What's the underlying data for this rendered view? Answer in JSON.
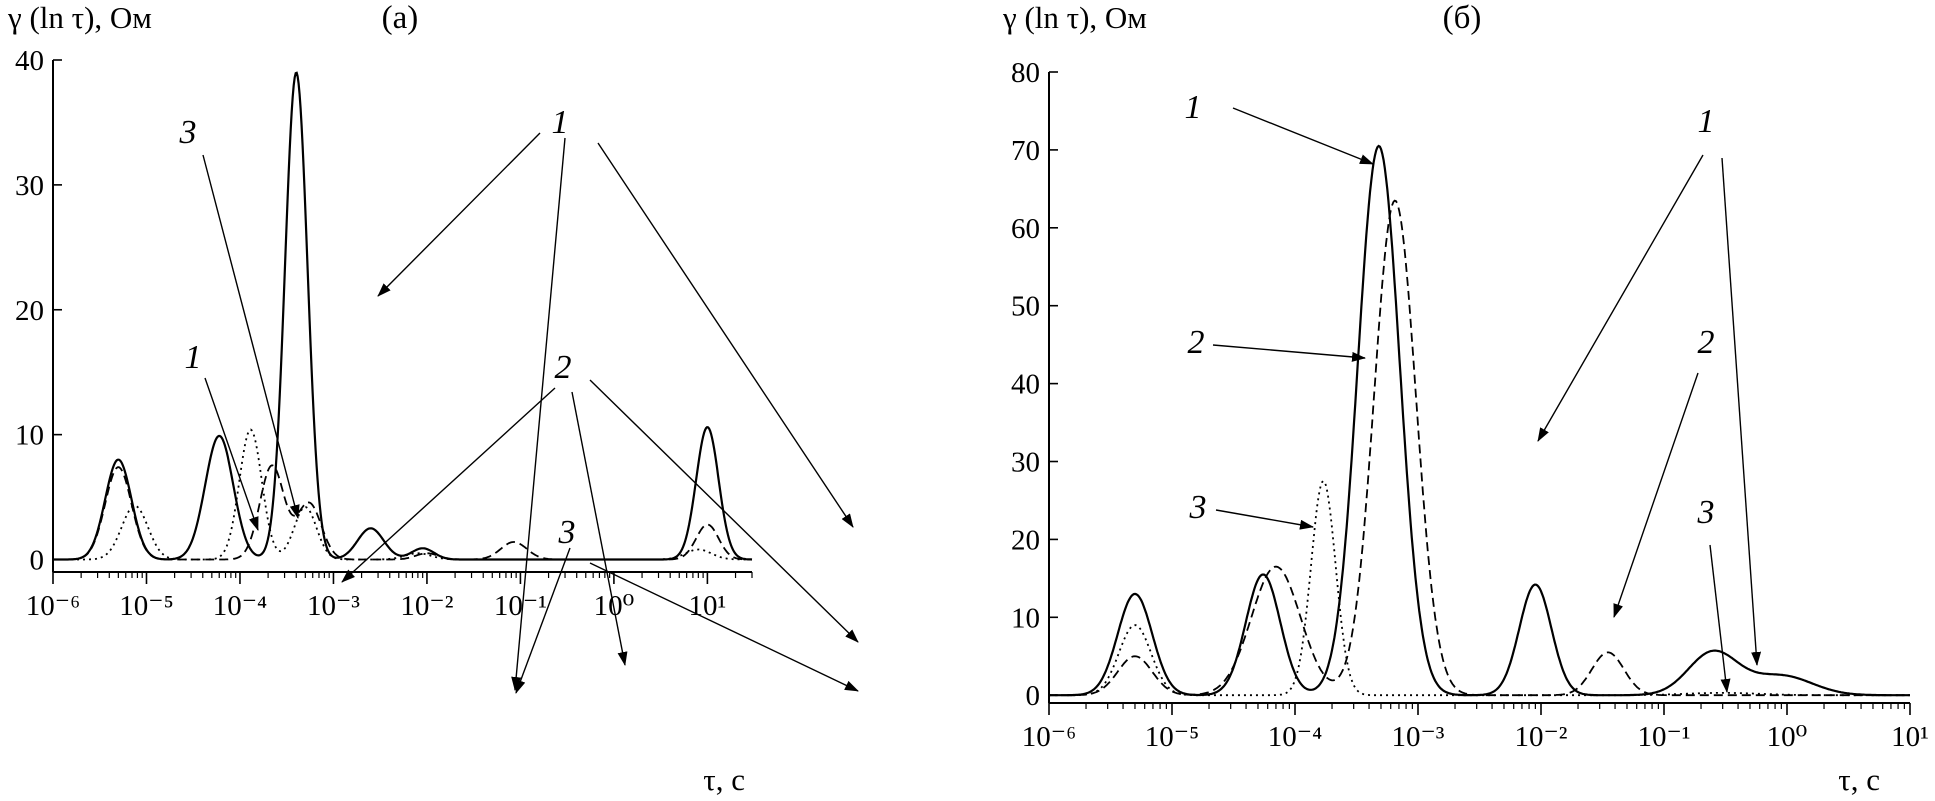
{
  "chart_data": [
    {
      "type": "line",
      "panel_label": "(a)",
      "ylabel": "γ (ln τ), Ом",
      "xlabel": "τ, c",
      "x_scale": "log",
      "xlim": [
        1e-06,
        30
      ],
      "ylim": [
        -1,
        40
      ],
      "x_tick_labels": [
        "10⁻⁶",
        "10⁻⁵",
        "10⁻⁴",
        "10⁻³",
        "10⁻²",
        "10⁻¹",
        "10⁰",
        "10¹"
      ],
      "y_ticks": [
        0,
        10,
        20,
        30,
        40
      ],
      "grid": false,
      "series": [
        {
          "name": "1",
          "line_style": "solid",
          "peaks": [
            {
              "tau": 5e-06,
              "height": 8.0,
              "width_decades": 0.14
            },
            {
              "tau": 6e-05,
              "height": 9.9,
              "width_decades": 0.15
            },
            {
              "tau": 0.0004,
              "height": 39.0,
              "width_decades": 0.12
            },
            {
              "tau": 0.0025,
              "height": 2.5,
              "width_decades": 0.14
            },
            {
              "tau": 0.009,
              "height": 0.9,
              "width_decades": 0.12
            },
            {
              "tau": 10,
              "height": 10.6,
              "width_decades": 0.12
            }
          ]
        },
        {
          "name": "2",
          "line_style": "dashed",
          "peaks": [
            {
              "tau": 5e-06,
              "height": 7.4,
              "width_decades": 0.14
            },
            {
              "tau": 0.00022,
              "height": 7.5,
              "width_decades": 0.13
            },
            {
              "tau": 0.00055,
              "height": 4.5,
              "width_decades": 0.13
            },
            {
              "tau": 0.01,
              "height": 0.5,
              "width_decades": 0.12
            },
            {
              "tau": 0.085,
              "height": 1.4,
              "width_decades": 0.14
            },
            {
              "tau": 10,
              "height": 2.8,
              "width_decades": 0.12
            }
          ]
        },
        {
          "name": "3",
          "line_style": "dotted",
          "peaks": [
            {
              "tau": 7.5e-06,
              "height": 4.3,
              "width_decades": 0.14
            },
            {
              "tau": 0.00013,
              "height": 10.4,
              "width_decades": 0.12
            },
            {
              "tau": 0.0005,
              "height": 4.2,
              "width_decades": 0.12
            },
            {
              "tau": 0.008,
              "height": 0.5,
              "width_decades": 0.14
            },
            {
              "tau": 8,
              "height": 0.8,
              "width_decades": 0.14
            }
          ]
        }
      ],
      "annotations": [
        {
          "text": "3"
        },
        {
          "text": "1"
        },
        {
          "text": "1"
        },
        {
          "text": "2"
        },
        {
          "text": "3"
        }
      ]
    },
    {
      "type": "line",
      "panel_label": "(б)",
      "ylabel": "γ (ln τ), Ом",
      "xlabel": "τ, c",
      "x_scale": "log",
      "xlim": [
        1e-06,
        10
      ],
      "ylim": [
        -1,
        80
      ],
      "x_tick_labels": [
        "10⁻⁶",
        "10⁻⁵",
        "10⁻⁴",
        "10⁻³",
        "10⁻²",
        "10⁻¹",
        "10⁰",
        "10¹"
      ],
      "y_ticks": [
        0,
        10,
        20,
        30,
        40,
        50,
        60,
        70,
        80
      ],
      "grid": false,
      "series": [
        {
          "name": "1",
          "line_style": "solid",
          "peaks": [
            {
              "tau": 5e-06,
              "height": 13.0,
              "width_decades": 0.14
            },
            {
              "tau": 5.5e-05,
              "height": 15.5,
              "width_decades": 0.14
            },
            {
              "tau": 0.00048,
              "height": 70.5,
              "width_decades": 0.17
            },
            {
              "tau": 0.009,
              "height": 14.2,
              "width_decades": 0.13
            },
            {
              "tau": 0.25,
              "height": 5.5,
              "width_decades": 0.2
            },
            {
              "tau": 0.9,
              "height": 2.5,
              "width_decades": 0.25
            }
          ]
        },
        {
          "name": "2",
          "line_style": "dashed",
          "peaks": [
            {
              "tau": 5e-06,
              "height": 5.0,
              "width_decades": 0.14
            },
            {
              "tau": 7e-05,
              "height": 16.5,
              "width_decades": 0.2
            },
            {
              "tau": 0.00065,
              "height": 63.5,
              "width_decades": 0.17
            },
            {
              "tau": 0.035,
              "height": 5.5,
              "width_decades": 0.13
            }
          ]
        },
        {
          "name": "3",
          "line_style": "dotted",
          "peaks": [
            {
              "tau": 5e-06,
              "height": 9.0,
              "width_decades": 0.13
            },
            {
              "tau": 0.00017,
              "height": 27.5,
              "width_decades": 0.1
            },
            {
              "tau": 0.3,
              "height": 0.3,
              "width_decades": 0.3
            }
          ]
        }
      ],
      "annotations": [
        {
          "text": "1"
        },
        {
          "text": "2"
        },
        {
          "text": "3"
        },
        {
          "text": "1"
        },
        {
          "text": "2"
        },
        {
          "text": "3"
        }
      ]
    }
  ]
}
